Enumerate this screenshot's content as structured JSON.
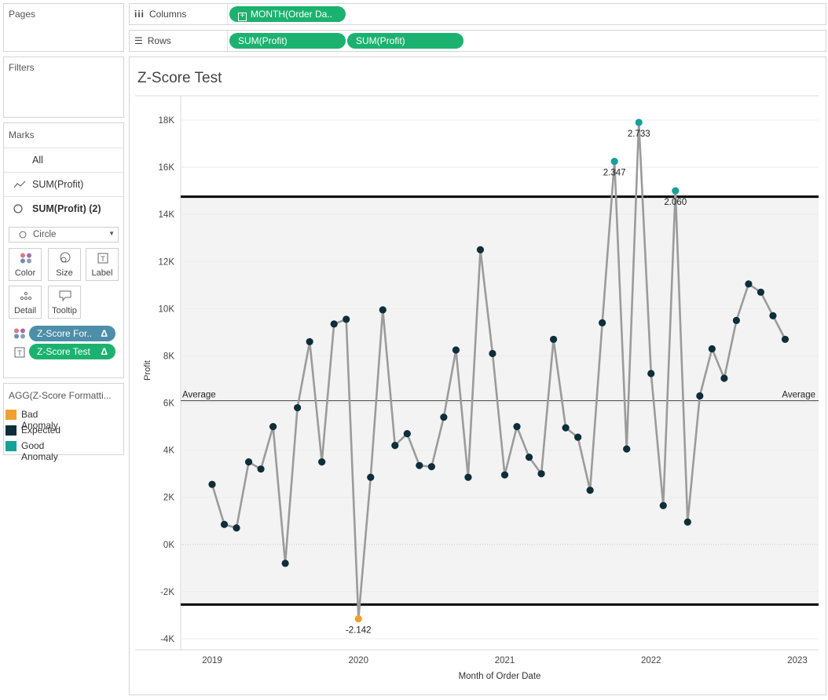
{
  "cards": {
    "pages": "Pages",
    "filters": "Filters",
    "marks": "Marks"
  },
  "shelves": {
    "columns_label": "Columns",
    "columns_pill": "MONTH(Order Da..",
    "rows_label": "Rows",
    "rows_pills": [
      "SUM(Profit)",
      "SUM(Profit)"
    ]
  },
  "marks": {
    "all": "All",
    "layer1": "SUM(Profit)",
    "layer2": "SUM(Profit) (2)",
    "mark_type": "Circle",
    "buttons": [
      "Color",
      "Size",
      "Label",
      "Detail",
      "Tooltip"
    ],
    "color_pill": "Z-Score For..",
    "label_pill": "Z-Score Test",
    "delta": "Δ"
  },
  "legend": {
    "title": "AGG(Z-Score Formatti...",
    "items": [
      {
        "label": "Bad Anomaly",
        "color": "#f0a030"
      },
      {
        "label": "Expected",
        "color": "#0d2e3a"
      },
      {
        "label": "Good Anomaly",
        "color": "#16a09a"
      }
    ]
  },
  "chart_data": {
    "type": "line",
    "title": "Z-Score Test",
    "xlabel": "Month of Order Date",
    "ylabel": "Profit",
    "x_ticks": [
      "2019",
      "2020",
      "2021",
      "2022",
      "2023"
    ],
    "y_ticks": [
      "18K",
      "16K",
      "14K",
      "12K",
      "10K",
      "8K",
      "6K",
      "4K",
      "2K",
      "0K",
      "-2K",
      "-4K"
    ],
    "ylim": [
      -4000,
      18000
    ],
    "reference_lines": {
      "average": {
        "label": "Average",
        "value": 6100
      },
      "upper_band": 14750,
      "lower_band": -2550
    },
    "series": [
      {
        "values": [
          2550,
          850,
          700,
          3500,
          3200,
          5000,
          -800,
          5800,
          8600,
          3500,
          9350,
          9550,
          -3150,
          2850,
          9950,
          4200,
          4700,
          3350,
          3300,
          5400,
          8250,
          2850,
          12500,
          8100,
          2950,
          5000,
          3700,
          3000,
          8700,
          4950,
          4550,
          2300,
          9400,
          16250,
          4050,
          17900,
          7250,
          1650,
          15000,
          950,
          6300,
          8300,
          7050,
          9500,
          11050,
          10700,
          9700,
          8700
        ],
        "z_labels": {
          "12": "-2.142",
          "33": "2.347",
          "35": "2.733",
          "38": "2.060"
        },
        "categories": {
          "12": "Bad Anomaly",
          "33": "Good Anomaly",
          "35": "Good Anomaly",
          "38": "Good Anomaly"
        }
      }
    ]
  }
}
